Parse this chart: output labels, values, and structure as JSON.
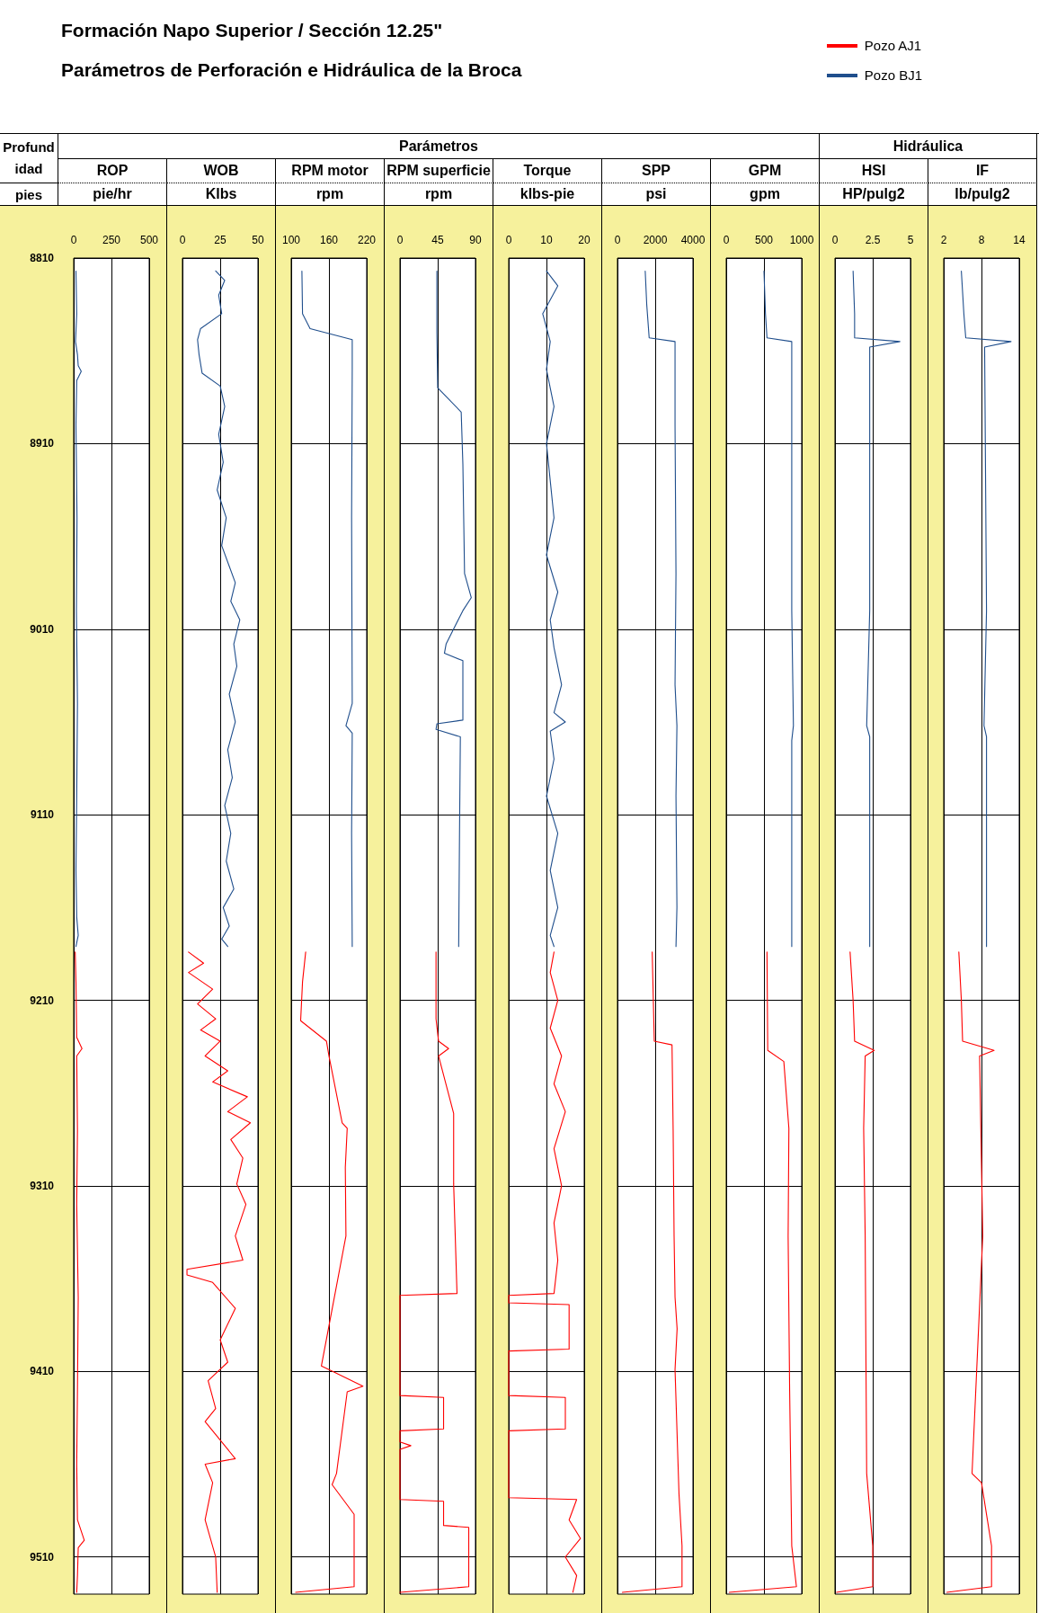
{
  "chart_data": [
    {
      "type": "other",
      "title": "Formación Napo Superior / Sección 12.25\"",
      "subtitle": "Parámetros de Perforación e Hidráulica de la Broca"
    },
    {
      "type": "line",
      "title": "ROP",
      "xlabel": "pie/hr",
      "ylabel": "Profundidad",
      "annotations": [
        "Parámetros",
        "pies"
      ],
      "legend": "top right",
      "grid": true,
      "xlim": [
        0,
        500
      ],
      "xticks": [
        0,
        250,
        500
      ],
      "ylim": [
        9530,
        8810
      ],
      "yticks": [
        8810,
        8910,
        9010,
        9110,
        9210,
        9310,
        9410,
        9510
      ],
      "series": [
        {
          "name": "Pozo AJ1",
          "color": "#ff0000",
          "x": [
            10,
            15,
            20,
            55,
            20,
            25,
            20,
            30,
            25,
            20,
            25,
            70,
            30,
            25,
            20
          ],
          "values": [
            9184,
            9200,
            9230,
            9236,
            9240,
            9280,
            9320,
            9370,
            9420,
            9460,
            9490,
            9501,
            9505,
            9520,
            9529
          ]
        },
        {
          "name": "Pozo BJ1",
          "color": "#1f4e8c",
          "x": [
            15,
            20,
            12,
            25,
            30,
            50,
            20,
            15,
            22,
            18,
            25,
            20,
            15,
            20,
            30,
            15
          ],
          "values": [
            8817,
            8840,
            8855,
            8862,
            8868,
            8871,
            8876,
            8900,
            8950,
            9000,
            9050,
            9100,
            9140,
            9165,
            9175,
            9181
          ]
        }
      ]
    },
    {
      "type": "line",
      "title": "WOB",
      "xlabel": "Klbs",
      "tick_labels": "x",
      "grid": true,
      "xlim": [
        0,
        50
      ],
      "xticks": [
        0,
        25,
        50
      ],
      "ylim": [
        9530,
        8810
      ],
      "yticks": [
        8810,
        8910,
        9010,
        9110,
        9210,
        9310,
        9410,
        9510
      ],
      "series": [
        {
          "name": "Pozo AJ1",
          "color": "#ff0000",
          "x": [
            4,
            14,
            4,
            20,
            10,
            22,
            12,
            25,
            15,
            30,
            20,
            43,
            30,
            45,
            32,
            40,
            36,
            42,
            35,
            40,
            3,
            3,
            20,
            35,
            25,
            30,
            17,
            22,
            15,
            35,
            15,
            20,
            15,
            22,
            23
          ],
          "values": [
            9184,
            9190,
            9195,
            9204,
            9212,
            9220,
            9226,
            9232,
            9240,
            9248,
            9254,
            9262,
            9270,
            9276,
            9285,
            9295,
            9309,
            9320,
            9337,
            9350,
            9355,
            9358,
            9362,
            9376,
            9393,
            9405,
            9415,
            9430,
            9437,
            9457,
            9460,
            9470,
            9490,
            9510,
            9529
          ]
        },
        {
          "name": "Pozo BJ1",
          "color": "#1f4e8c",
          "x": [
            22,
            28,
            24,
            26,
            12,
            10,
            11,
            13,
            25,
            28,
            24,
            27,
            23,
            29,
            26,
            35,
            32,
            38,
            34,
            36,
            31,
            35,
            30,
            33,
            28,
            32,
            29,
            34,
            27,
            31,
            26,
            30
          ],
          "values": [
            8817,
            8822,
            8830,
            8840,
            8848,
            8854,
            8862,
            8872,
            8879,
            8890,
            8905,
            8920,
            8935,
            8950,
            8965,
            8985,
            8995,
            9005,
            9018,
            9030,
            9045,
            9060,
            9075,
            9090,
            9105,
            9120,
            9135,
            9150,
            9160,
            9170,
            9177,
            9181
          ]
        }
      ]
    },
    {
      "type": "line",
      "title": "RPM motor",
      "xlabel": "rpm",
      "tick_labels": "x",
      "grid": true,
      "xlim": [
        100,
        220
      ],
      "xticks": [
        100,
        160,
        220
      ],
      "ylim": [
        9530,
        8810
      ],
      "yticks": [
        8810,
        8910,
        9010,
        9110,
        9210,
        9310,
        9410,
        9510
      ],
      "series": [
        {
          "name": "Pozo AJ1",
          "color": "#ff0000",
          "x": [
            123,
            118,
            115,
            156,
            160,
            181,
            189,
            186,
            187,
            148,
            214,
            189,
            172,
            165,
            200,
            200,
            107
          ],
          "values": [
            9184,
            9200,
            9221,
            9232,
            9240,
            9276,
            9279,
            9300,
            9337,
            9407,
            9418,
            9421,
            9465,
            9471,
            9487,
            9526,
            9529
          ]
        },
        {
          "name": "Pozo BJ1",
          "color": "#1f4e8c",
          "x": [
            117,
            118,
            130,
            197,
            197,
            196,
            197,
            187,
            197,
            196,
            197
          ],
          "values": [
            8817,
            8840,
            8848,
            8854,
            8870,
            8950,
            9050,
            9062,
            9066,
            9120,
            9181
          ]
        }
      ]
    },
    {
      "type": "line",
      "title": "RPM superficie",
      "xlabel": "rpm",
      "tick_labels": "x",
      "grid": true,
      "xlim": [
        0,
        90
      ],
      "xticks": [
        0,
        45,
        90
      ],
      "ylim": [
        9530,
        8810
      ],
      "yticks": [
        8810,
        8910,
        9010,
        9110,
        9210,
        9310,
        9410,
        9510
      ],
      "series": [
        {
          "name": "Pozo AJ1",
          "color": "#ff0000",
          "x": [
            43,
            43,
            46,
            58,
            46,
            64,
            64,
            68,
            0,
            0,
            52,
            52,
            0,
            0,
            13,
            0,
            0,
            52,
            52,
            82,
            82,
            0
          ],
          "values": [
            9184,
            9220,
            9232,
            9236,
            9240,
            9271,
            9309,
            9368,
            9369,
            9423,
            9424,
            9441,
            9442,
            9448,
            9450,
            9452,
            9479,
            9480,
            9493,
            9494,
            9526,
            9529
          ]
        },
        {
          "name": "Pozo BJ1",
          "color": "#1f4e8c",
          "x": [
            44,
            44,
            45,
            73,
            75,
            77,
            85,
            75,
            55,
            53,
            75,
            75,
            44,
            43,
            72,
            71,
            70
          ],
          "values": [
            8817,
            8850,
            8880,
            8893,
            8921,
            8980,
            8993,
            9000,
            9018,
            9023,
            9027,
            9059,
            9061,
            9064,
            9068,
            9120,
            9181
          ]
        }
      ]
    },
    {
      "type": "line",
      "title": "Torque",
      "xlabel": "klbs-pie",
      "tick_labels": "x",
      "grid": true,
      "xlim": [
        0,
        20
      ],
      "xticks": [
        0,
        10,
        20
      ],
      "ylim": [
        9530,
        8810
      ],
      "yticks": [
        8810,
        8910,
        9010,
        9110,
        9210,
        9310,
        9410,
        9510
      ],
      "series": [
        {
          "name": "Pozo AJ1",
          "color": "#ff0000",
          "x": [
            12,
            11,
            13,
            11,
            14,
            12,
            15,
            12,
            14,
            12,
            13,
            12,
            0,
            0,
            16,
            16,
            0,
            0,
            15,
            15,
            0,
            0,
            18,
            16,
            19,
            15,
            18,
            17
          ],
          "values": [
            9184,
            9195,
            9210,
            9225,
            9240,
            9255,
            9270,
            9290,
            9310,
            9330,
            9350,
            9368,
            9369,
            9373,
            9374,
            9398,
            9399,
            9423,
            9424,
            9441,
            9442,
            9478,
            9479,
            9490,
            9500,
            9510,
            9520,
            9529
          ]
        },
        {
          "name": "Pozo BJ1",
          "color": "#1f4e8c",
          "x": [
            10,
            13,
            9,
            11,
            10,
            12,
            10,
            11,
            12,
            10,
            13,
            11,
            12,
            14,
            12,
            15,
            11,
            12,
            10,
            13,
            11,
            13,
            11,
            12
          ],
          "values": [
            8817,
            8825,
            8840,
            8855,
            8870,
            8890,
            8910,
            8930,
            8950,
            8970,
            8990,
            9005,
            9020,
            9040,
            9055,
            9060,
            9065,
            9080,
            9100,
            9120,
            9140,
            9160,
            9175,
            9181
          ]
        }
      ]
    },
    {
      "type": "line",
      "title": "SPP",
      "xlabel": "psi",
      "tick_labels": "x",
      "grid": true,
      "xlim": [
        0,
        4000
      ],
      "xticks": [
        0,
        2000,
        4000
      ],
      "ylim": [
        9530,
        8810
      ],
      "yticks": [
        8810,
        8910,
        9010,
        9110,
        9210,
        9310,
        9410,
        9510
      ],
      "series": [
        {
          "name": "Pozo AJ1",
          "color": "#ff0000",
          "x": [
            1840,
            1900,
            1950,
            2890,
            2950,
            3000,
            3050,
            3160,
            3050,
            3260,
            3420,
            3420,
            260
          ],
          "values": [
            9184,
            9210,
            9232,
            9234,
            9280,
            9337,
            9370,
            9387,
            9409,
            9476,
            9504,
            9526,
            9529
          ]
        },
        {
          "name": "Pozo BJ1",
          "color": "#1f4e8c",
          "x": [
            1470,
            1550,
            1680,
            3050,
            3050,
            3100,
            3050,
            3150,
            3100,
            3150,
            3100
          ],
          "values": [
            8817,
            8835,
            8853,
            8855,
            8900,
            8980,
            9040,
            9062,
            9100,
            9160,
            9181
          ]
        }
      ]
    },
    {
      "type": "line",
      "title": "GPM",
      "xlabel": "gpm",
      "tick_labels": "x",
      "grid": true,
      "xlim": [
        0,
        1000
      ],
      "xticks": [
        0,
        500,
        1000
      ],
      "ylim": [
        9530,
        8810
      ],
      "yticks": [
        8810,
        8910,
        9010,
        9110,
        9210,
        9310,
        9410,
        9510
      ],
      "series": [
        {
          "name": "Pozo AJ1",
          "color": "#ff0000",
          "x": [
            540,
            550,
            763,
            830,
            820,
            840,
            868,
            930,
            40
          ],
          "values": [
            9184,
            9237,
            9243,
            9279,
            9337,
            9420,
            9504,
            9526,
            9529
          ]
        },
        {
          "name": "Pozo BJ1",
          "color": "#1f4e8c",
          "x": [
            500,
            520,
            540,
            868,
            868,
            890,
            868,
            868
          ],
          "values": [
            8817,
            8840,
            8853,
            8855,
            9000,
            9062,
            9070,
            9181
          ]
        }
      ]
    },
    {
      "type": "line",
      "title": "HSI",
      "xlabel": "HP/pulg2",
      "annotations": [
        "Hidráulica"
      ],
      "tick_labels": "x",
      "grid": true,
      "xlim": [
        0,
        5
      ],
      "xticks": [
        0,
        2.5,
        5
      ],
      "ylim": [
        9530,
        8810
      ],
      "yticks": [
        8810,
        8910,
        9010,
        9110,
        9210,
        9310,
        9410,
        9510
      ],
      "series": [
        {
          "name": "Pozo AJ1",
          "color": "#ff0000",
          "x": [
            1.0,
            1.2,
            1.3,
            2.6,
            2.0,
            1.9,
            2.0,
            2.1,
            2.5,
            2.5,
            0.1
          ],
          "values": [
            9184,
            9210,
            9232,
            9237,
            9240,
            9279,
            9337,
            9465,
            9504,
            9526,
            9529
          ]
        },
        {
          "name": "Pozo BJ1",
          "color": "#1f4e8c",
          "x": [
            1.2,
            1.3,
            1.3,
            4.3,
            2.3,
            2.3,
            2.1,
            2.3,
            2.3
          ],
          "values": [
            8817,
            8840,
            8853,
            8855,
            8858,
            9000,
            9062,
            9068,
            9181
          ]
        }
      ]
    },
    {
      "type": "line",
      "title": "IF",
      "xlabel": "lb/pulg2",
      "tick_labels": "x",
      "grid": true,
      "xlim": [
        2,
        14
      ],
      "xticks": [
        2,
        8,
        14
      ],
      "ylim": [
        9530,
        8810
      ],
      "yticks": [
        8810,
        8910,
        9010,
        9110,
        9210,
        9310,
        9410,
        9510
      ],
      "series": [
        {
          "name": "Pozo AJ1",
          "color": "#ff0000",
          "x": [
            4.4,
            4.8,
            5.0,
            10.0,
            7.7,
            7.9,
            8.2,
            6.5,
            8.0,
            9.6,
            9.6,
            2.5
          ],
          "values": [
            9184,
            9210,
            9232,
            9237,
            9240,
            9279,
            9337,
            9465,
            9470,
            9504,
            9526,
            9529
          ]
        },
        {
          "name": "Pozo BJ1",
          "color": "#1f4e8c",
          "x": [
            4.8,
            5.2,
            5.5,
            12.7,
            8.5,
            8.8,
            8.4,
            8.8,
            8.8
          ],
          "values": [
            8817,
            8840,
            8853,
            8855,
            8858,
            9000,
            9062,
            9068,
            9181
          ]
        }
      ]
    }
  ]
}
